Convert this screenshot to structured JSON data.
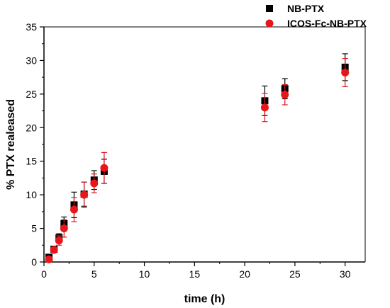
{
  "chart_data": {
    "type": "scatter",
    "title": "",
    "xlabel": "time (h)",
    "ylabel": "% PTX realeased",
    "xlim": [
      0,
      32
    ],
    "ylim": [
      0,
      35
    ],
    "xticks": [
      0,
      5,
      10,
      15,
      20,
      25,
      30
    ],
    "yticks": [
      0,
      5,
      10,
      15,
      20,
      25,
      30,
      35
    ],
    "grid": false,
    "legend_position": "top-right",
    "series": [
      {
        "name": "NB-PTX",
        "marker": "square",
        "color": "#000000",
        "errorbar_color": "#000000",
        "x": [
          0.5,
          1,
          1.5,
          2,
          3,
          4,
          5,
          6,
          22,
          24,
          30
        ],
        "y": [
          0.7,
          1.9,
          3.6,
          5.7,
          8.5,
          10.1,
          12.2,
          13.5,
          24.0,
          25.8,
          29.0
        ],
        "err": [
          0.3,
          0.4,
          0.6,
          1.0,
          1.9,
          1.8,
          1.4,
          1.8,
          2.2,
          1.5,
          2.0
        ]
      },
      {
        "name": "ICOS-Fc-NB-PTX",
        "marker": "circle",
        "color": "#e8161b",
        "errorbar_color": "#d9141a",
        "x": [
          0.5,
          1,
          1.5,
          2,
          3,
          4,
          5,
          6,
          22,
          24,
          30
        ],
        "y": [
          0.4,
          1.8,
          3.2,
          5.0,
          7.8,
          10.0,
          11.7,
          14.0,
          23.0,
          24.9,
          28.2
        ],
        "err": [
          0.3,
          0.4,
          0.7,
          1.3,
          1.8,
          1.9,
          1.4,
          2.3,
          2.1,
          1.5,
          2.1
        ]
      }
    ]
  }
}
